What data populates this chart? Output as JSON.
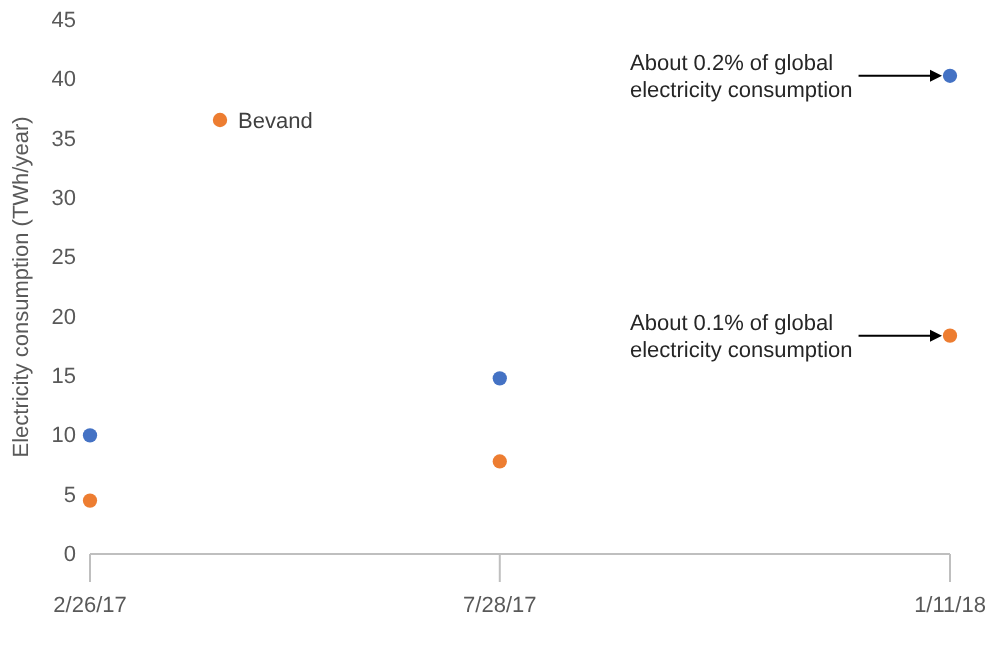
{
  "chart_data": {
    "type": "scatter",
    "ylabel": "Electricity consumption (TWh/year)",
    "x": [
      "2017-02-26",
      "2017-07-28",
      "2018-01-11"
    ],
    "series": [
      {
        "color": "#4472c4",
        "values": [
          10,
          14.8,
          40.3
        ]
      },
      {
        "name": "Bevand",
        "color": "#ed7d31",
        "values": [
          4.5,
          7.8,
          18.4
        ]
      }
    ],
    "xlim": [
      "2017-02-26",
      "2018-01-11"
    ],
    "xticks": [
      {
        "value": "2017-02-26",
        "label": "2/26/17"
      },
      {
        "value": "2017-07-28",
        "label": "7/28/17"
      },
      {
        "value": "2018-01-11",
        "label": "1/11/18"
      }
    ],
    "ylim": [
      0,
      45
    ],
    "yticks": [
      0,
      5,
      10,
      15,
      20,
      25,
      30,
      35,
      40,
      45
    ],
    "grid": false,
    "legend": "top left",
    "marker": "circle",
    "annotations": [
      {
        "text": "About 0.2% of global electricity consumption",
        "x": "2018-01-11",
        "y": 40.3
      },
      {
        "text": "About 0.1% of global electricity consumption",
        "x": "2018-01-11",
        "y": 18.4
      }
    ]
  }
}
